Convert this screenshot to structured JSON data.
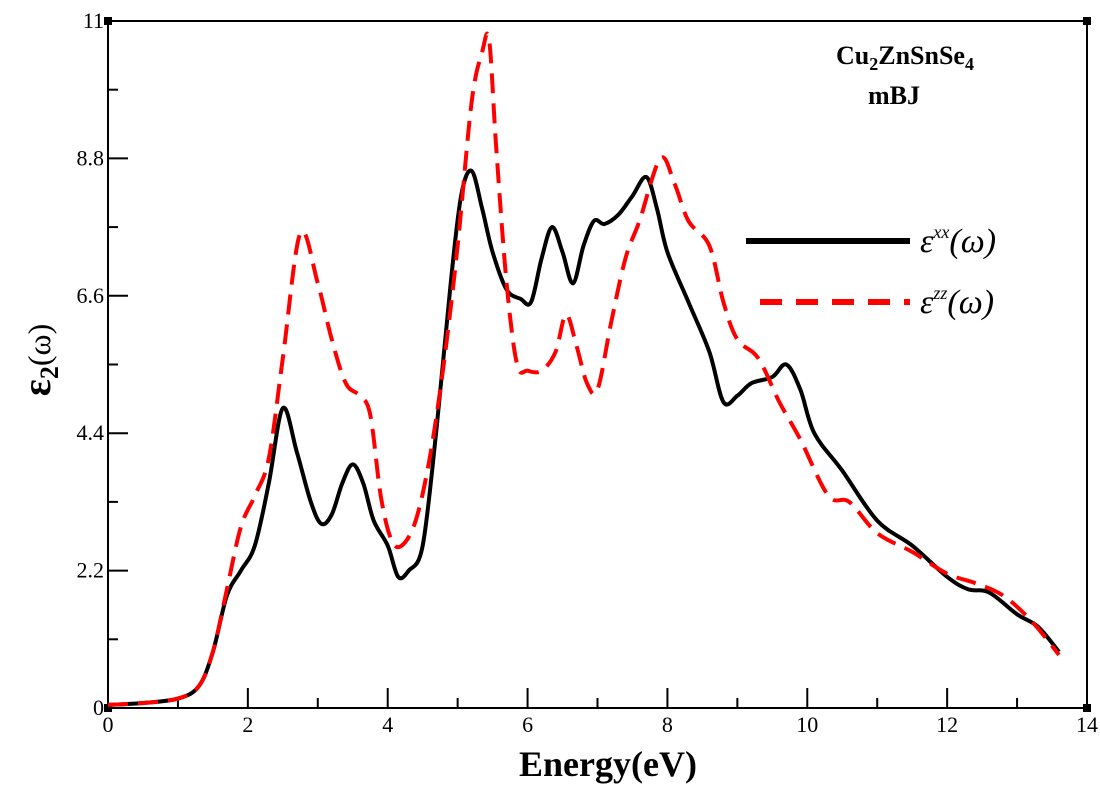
{
  "chart_data": {
    "type": "line",
    "xlabel": "Energy(eV)",
    "ylabel": "ε2(ω)",
    "xlim": [
      0,
      14
    ],
    "ylim": [
      0,
      11
    ],
    "xticks": [
      0,
      2,
      4,
      6,
      8,
      10,
      12,
      14
    ],
    "xtick_labels": [
      "0",
      "2",
      "4",
      "6",
      "8",
      "10",
      "12",
      "14"
    ],
    "yticks": [
      0,
      2.2,
      4.4,
      6.6,
      8.8,
      11
    ],
    "ytick_labels": [
      "0",
      "2.2",
      "4.4",
      "6.6",
      "8.8",
      "11"
    ],
    "grid": false,
    "legend_position": "right",
    "annotations": [
      "Cu2ZnSnSe4",
      "mBJ"
    ],
    "series": [
      {
        "name": "εxx(ω)",
        "color": "#000000",
        "dash": "solid",
        "x": [
          0,
          0.5,
          1.0,
          1.3,
          1.5,
          1.7,
          1.9,
          2.1,
          2.3,
          2.5,
          2.7,
          2.9,
          3.05,
          3.2,
          3.35,
          3.5,
          3.65,
          3.8,
          4.0,
          4.15,
          4.3,
          4.5,
          4.7,
          4.9,
          5.05,
          5.2,
          5.35,
          5.5,
          5.7,
          5.9,
          6.05,
          6.2,
          6.35,
          6.5,
          6.65,
          6.8,
          6.95,
          7.1,
          7.3,
          7.5,
          7.7,
          7.85,
          8.0,
          8.3,
          8.6,
          8.8,
          9.0,
          9.2,
          9.5,
          9.7,
          9.9,
          10.1,
          10.5,
          11.0,
          11.5,
          12.0,
          12.3,
          12.6,
          13.0,
          13.3,
          13.6
        ],
        "y": [
          0.05,
          0.08,
          0.15,
          0.35,
          0.9,
          1.8,
          2.2,
          2.6,
          3.6,
          4.8,
          4.1,
          3.3,
          2.95,
          3.1,
          3.6,
          3.9,
          3.6,
          3.0,
          2.6,
          2.1,
          2.2,
          2.6,
          4.5,
          6.8,
          8.2,
          8.6,
          8.0,
          7.3,
          6.7,
          6.55,
          6.5,
          7.2,
          7.7,
          7.3,
          6.8,
          7.4,
          7.8,
          7.75,
          7.9,
          8.2,
          8.5,
          8.0,
          7.3,
          6.5,
          5.7,
          4.9,
          5.0,
          5.2,
          5.3,
          5.5,
          5.1,
          4.4,
          3.8,
          3.0,
          2.6,
          2.1,
          1.9,
          1.85,
          1.5,
          1.3,
          0.9
        ]
      },
      {
        "name": "εzz(ω)",
        "color": "#ff0000",
        "dash": "dashed",
        "x": [
          0,
          0.5,
          1.0,
          1.3,
          1.5,
          1.7,
          1.9,
          2.1,
          2.3,
          2.5,
          2.75,
          3.0,
          3.2,
          3.4,
          3.6,
          3.75,
          3.9,
          4.05,
          4.2,
          4.4,
          4.6,
          4.8,
          5.0,
          5.2,
          5.35,
          5.45,
          5.55,
          5.7,
          5.85,
          6.0,
          6.2,
          6.4,
          6.55,
          6.7,
          6.85,
          7.0,
          7.2,
          7.4,
          7.6,
          7.9,
          8.1,
          8.3,
          8.6,
          8.8,
          9.0,
          9.3,
          9.6,
          9.9,
          10.3,
          10.6,
          11.0,
          11.5,
          12.0,
          12.4,
          12.8,
          13.2,
          13.6
        ],
        "y": [
          0.05,
          0.08,
          0.15,
          0.35,
          0.9,
          1.9,
          2.9,
          3.4,
          4.0,
          5.6,
          7.6,
          6.8,
          5.9,
          5.2,
          5.0,
          4.7,
          3.4,
          2.7,
          2.6,
          3.0,
          4.0,
          5.5,
          7.4,
          9.7,
          10.5,
          10.7,
          9.0,
          6.8,
          5.5,
          5.4,
          5.4,
          5.7,
          6.3,
          5.8,
          5.2,
          5.1,
          6.2,
          7.2,
          7.8,
          8.8,
          8.4,
          7.8,
          7.4,
          6.5,
          5.9,
          5.6,
          4.9,
          4.3,
          3.4,
          3.3,
          2.8,
          2.5,
          2.15,
          2.0,
          1.8,
          1.4,
          0.85
        ]
      }
    ]
  },
  "annotation_text": {
    "compound_main": "Cu",
    "compound_sub1": "2",
    "compound_mid": "ZnSnSe",
    "compound_sub2": "4",
    "method": "mBJ"
  },
  "legend_text": {
    "xx_base": "ε",
    "xx_sup": "xx",
    "xx_arg": "(ω)",
    "zz_base": "ε",
    "zz_sup": "zz",
    "zz_arg": "(ω)"
  },
  "ylabel_parts": {
    "base": "ε",
    "sub": "2",
    "arg": "(ω)"
  }
}
